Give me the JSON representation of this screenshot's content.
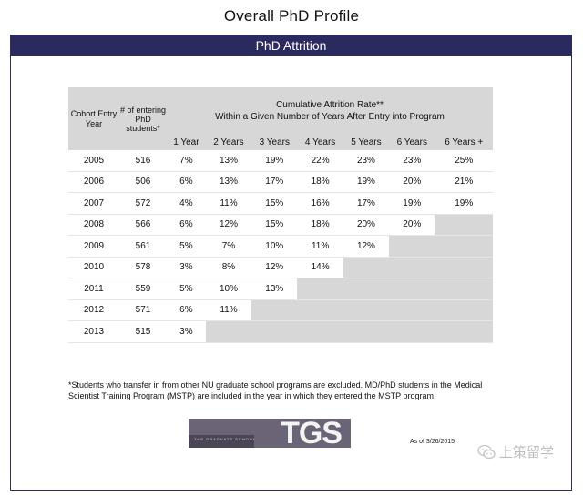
{
  "page": {
    "title": "Overall PhD Profile"
  },
  "banner": {
    "title": "PhD Attrition"
  },
  "table": {
    "headers": {
      "cohort": "Cohort Entry Year",
      "entering": "# of entering PhD students*",
      "rate_line1": "Cumulative Attrition Rate**",
      "rate_line2": "Within a Given Number of Years After Entry into Program"
    },
    "year_cols": [
      "1 Year",
      "2 Years",
      "3 Years",
      "4 Years",
      "5 Years",
      "6 Years",
      "6 Years +"
    ],
    "rows": [
      {
        "year": "2005",
        "n": "516",
        "rates": [
          "7%",
          "13%",
          "19%",
          "22%",
          "23%",
          "23%",
          "25%"
        ]
      },
      {
        "year": "2006",
        "n": "506",
        "rates": [
          "6%",
          "13%",
          "17%",
          "18%",
          "19%",
          "20%",
          "21%"
        ]
      },
      {
        "year": "2007",
        "n": "572",
        "rates": [
          "4%",
          "11%",
          "15%",
          "16%",
          "17%",
          "19%",
          "19%"
        ]
      },
      {
        "year": "2008",
        "n": "566",
        "rates": [
          "6%",
          "12%",
          "15%",
          "18%",
          "20%",
          "20%",
          ""
        ]
      },
      {
        "year": "2009",
        "n": "561",
        "rates": [
          "5%",
          "7%",
          "10%",
          "11%",
          "12%",
          "",
          ""
        ]
      },
      {
        "year": "2010",
        "n": "578",
        "rates": [
          "3%",
          "8%",
          "12%",
          "14%",
          "",
          "",
          ""
        ]
      },
      {
        "year": "2011",
        "n": "559",
        "rates": [
          "5%",
          "10%",
          "13%",
          "",
          "",
          "",
          ""
        ]
      },
      {
        "year": "2012",
        "n": "571",
        "rates": [
          "6%",
          "11%",
          "",
          "",
          "",
          "",
          ""
        ]
      },
      {
        "year": "2013",
        "n": "515",
        "rates": [
          "3%",
          "",
          "",
          "",
          "",
          "",
          ""
        ]
      }
    ]
  },
  "footnote": "*Students who transfer in from other NU graduate school programs are excluded. MD/PhD students in the Medical Scientist Training Program (MSTP) are included in the year in which they entered the MSTP program.",
  "logo": {
    "text": "TGS",
    "small_text": "THE GRADUATE SCHOOL"
  },
  "as_of": "As of 3/26/2015",
  "watermark": {
    "text": "上策留学",
    "icon": "wechat-icon"
  },
  "colors": {
    "banner": "#2a2a5e",
    "header_gray": "#d7d7d7"
  }
}
